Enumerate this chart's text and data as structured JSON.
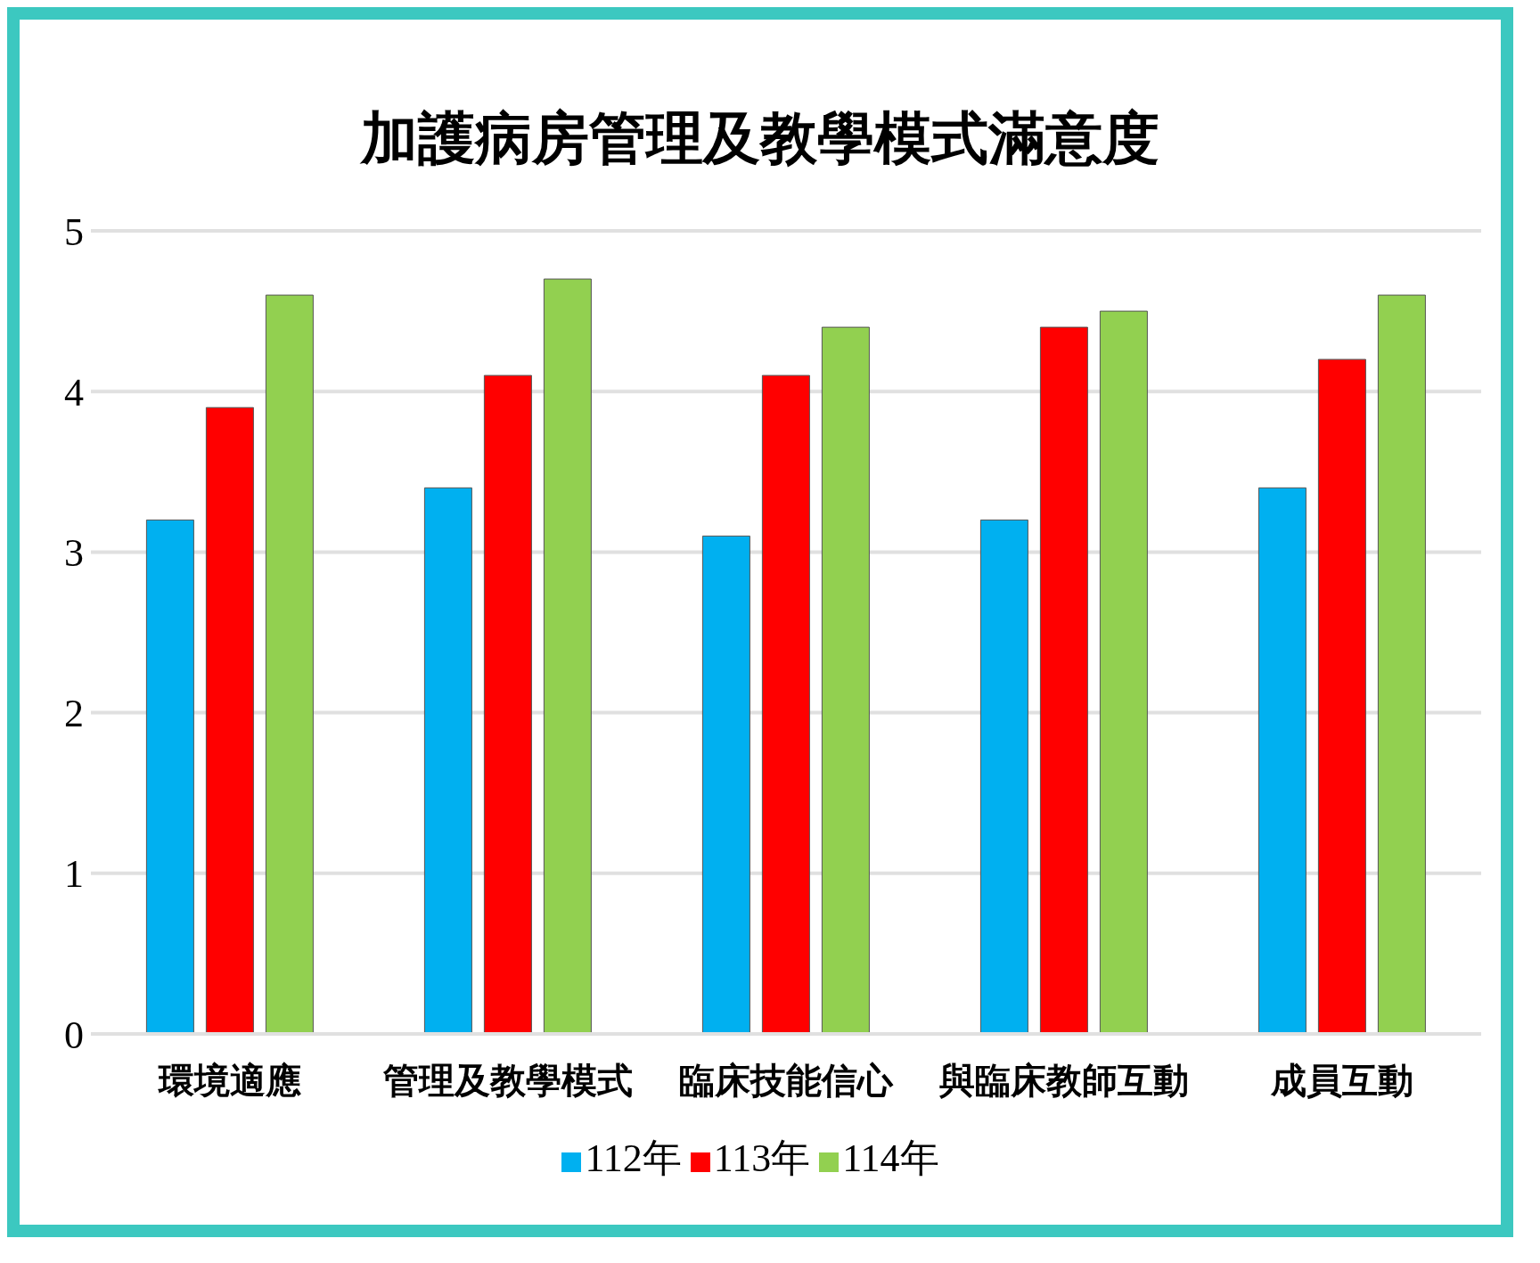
{
  "chart_data": {
    "type": "bar",
    "title": "加護病房管理及教學模式滿意度",
    "categories": [
      "環境適應",
      "管理及教學模式",
      "臨床技能信心",
      "與臨床教師互動",
      "成員互動"
    ],
    "series": [
      {
        "name": "112年",
        "color": "#00b0f0",
        "values": [
          3.2,
          3.4,
          3.1,
          3.2,
          3.4
        ]
      },
      {
        "name": "113年",
        "color": "#ff0000",
        "values": [
          3.9,
          4.1,
          4.1,
          4.4,
          4.2
        ]
      },
      {
        "name": "114年",
        "color": "#92d050",
        "values": [
          4.6,
          4.7,
          4.4,
          4.5,
          4.6
        ]
      }
    ],
    "ylim": [
      0,
      5
    ],
    "yticks": [
      0,
      1,
      2,
      3,
      4,
      5
    ],
    "grid": "y",
    "legend": "bottom"
  }
}
